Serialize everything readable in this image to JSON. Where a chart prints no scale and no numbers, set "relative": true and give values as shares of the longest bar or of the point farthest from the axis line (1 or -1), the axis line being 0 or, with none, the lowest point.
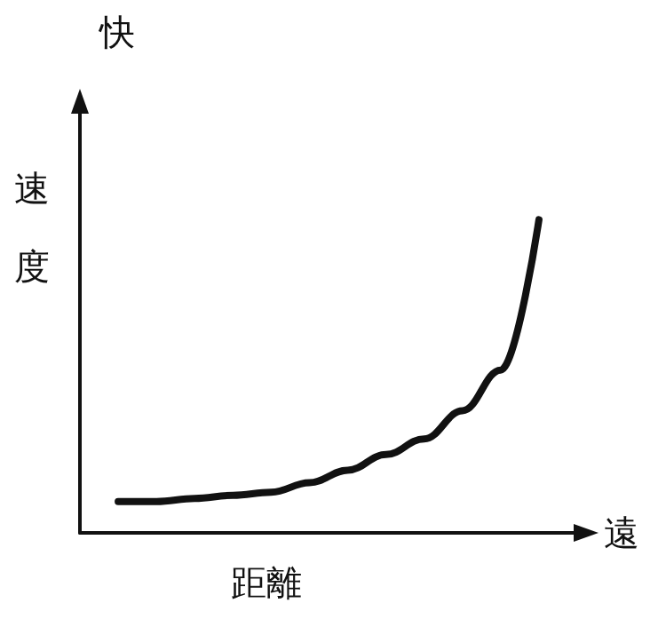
{
  "chart_data": {
    "type": "line",
    "relative": true,
    "xlabel": "距離",
    "ylabel": "速度",
    "annotations": [
      "快",
      "遠"
    ],
    "categories": [
      null,
      null,
      null,
      null,
      null,
      null,
      null,
      null,
      null,
      null,
      null,
      null,
      null,
      null
    ],
    "series": [
      {
        "color": "#111111",
        "values": [
          null,
          0.1,
          0.1,
          0.11,
          0.12,
          0.13,
          0.16,
          0.2,
          0.25,
          0.3,
          0.39,
          0.52,
          1.0,
          null
        ]
      }
    ],
    "marker": "none"
  }
}
